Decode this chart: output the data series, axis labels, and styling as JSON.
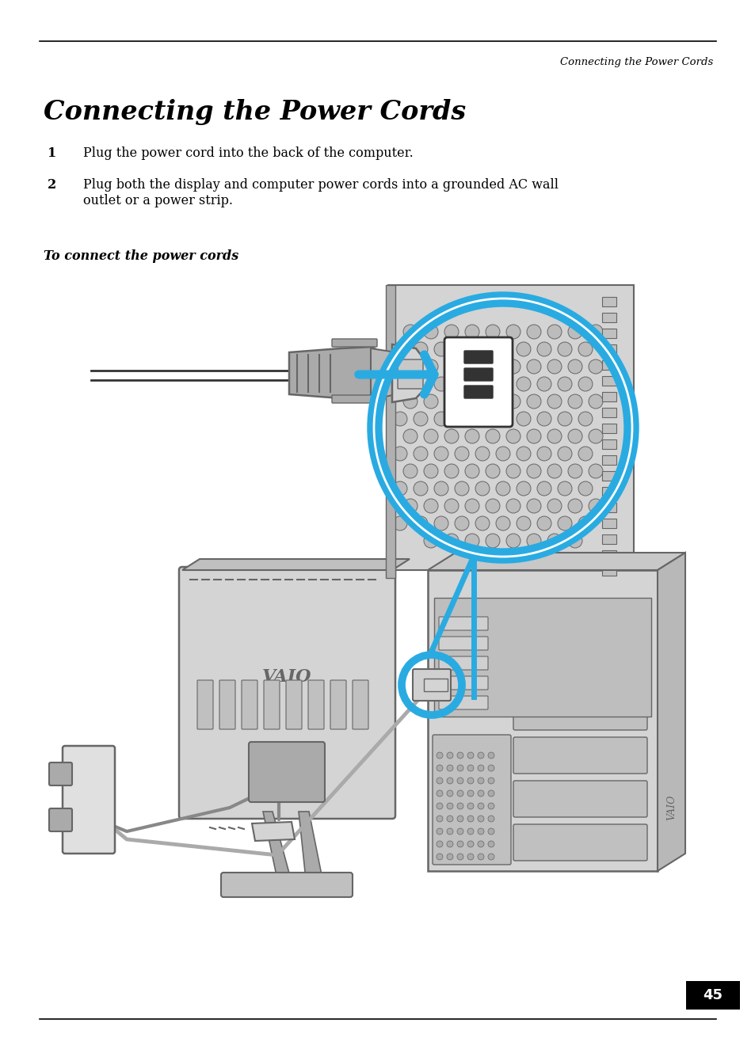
{
  "page_number": "45",
  "header_text": "Connecting the Power Cords",
  "title": "Connecting the Power Cords",
  "step1_num": "1",
  "step1_text": "Plug the power cord into the back of the computer.",
  "step2_num": "2",
  "step2_text": "Plug both the display and computer power cords into a grounded AC wall\noutlet or a power strip.",
  "subheading": "To connect the power cords",
  "bg_color": "#ffffff",
  "text_color": "#000000",
  "header_color": "#000000",
  "line_color": "#000000",
  "page_num_bg": "#000000",
  "page_num_fg": "#ffffff",
  "cyan_color": "#29abe2",
  "light_gray": "#d4d4d4",
  "mid_gray": "#aaaaaa",
  "dark_gray": "#666666",
  "very_dark": "#333333"
}
